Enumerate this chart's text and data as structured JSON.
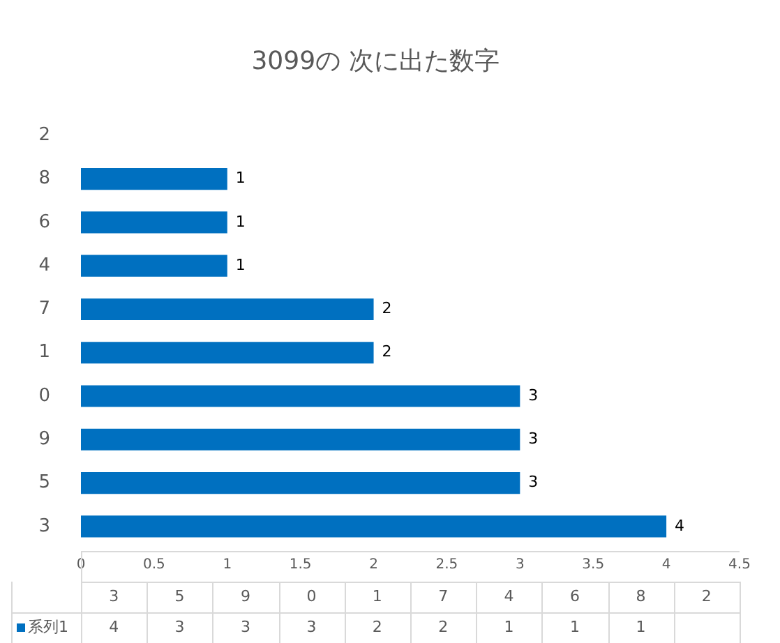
{
  "chart_data": {
    "type": "bar",
    "orientation": "horizontal",
    "title": "3099の 次に出た数字",
    "categories": [
      "2",
      "8",
      "6",
      "4",
      "7",
      "1",
      "0",
      "9",
      "5",
      "3"
    ],
    "series": [
      {
        "name": "系列1",
        "color": "#0070c0",
        "values": [
          null,
          1,
          1,
          1,
          2,
          2,
          3,
          3,
          3,
          4
        ]
      }
    ],
    "xlim": [
      0,
      4.5
    ],
    "xticks": [
      0,
      0.5,
      1,
      1.5,
      2,
      2.5,
      3,
      3.5,
      4,
      4.5
    ],
    "data_labels": true,
    "legend": "bottom"
  }
}
